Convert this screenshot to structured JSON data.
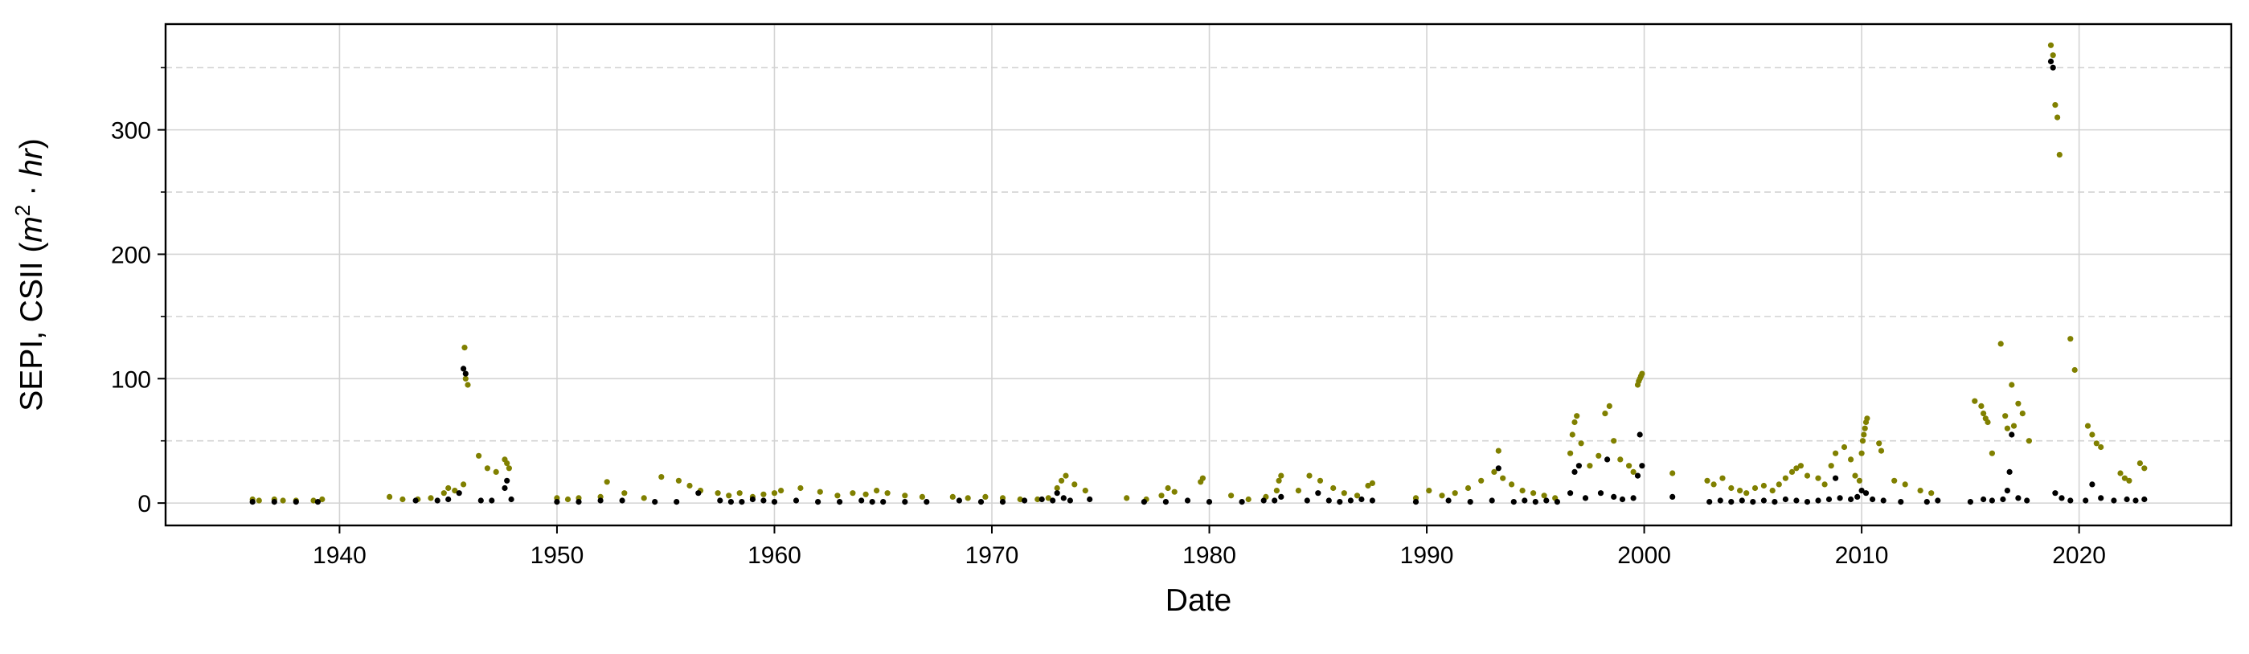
{
  "chart_data": {
    "type": "scatter",
    "title": "",
    "xlabel": "Date",
    "ylabel": "SEPI, CSII (m² · hr)",
    "ylabel_main": "SEPI, CSII (",
    "ylabel_math_m": "m",
    "ylabel_math_sup": "2",
    "ylabel_math_dot": " · ",
    "ylabel_math_hr": "hr",
    "ylabel_close": ")",
    "xlim": [
      1932,
      2027
    ],
    "ylim": [
      -18,
      385
    ],
    "x_ticks": [
      1940,
      1950,
      1960,
      1970,
      1980,
      1990,
      2000,
      2010,
      2020
    ],
    "x_tick_labels": [
      "1940",
      "1950",
      "1960",
      "1970",
      "1980",
      "1990",
      "2000",
      "2010",
      "2020"
    ],
    "y_ticks": [
      0,
      100,
      200,
      300
    ],
    "y_tick_labels": [
      "0",
      "100",
      "200",
      "300"
    ],
    "y_minor_ticks": [
      50,
      150,
      250,
      350
    ],
    "grid": "major solid, minor dashed (y)",
    "legend": "none",
    "series": [
      {
        "color": "#808000",
        "x": [
          1936.0,
          1936.3,
          1937.0,
          1937.4,
          1938.0,
          1938.8,
          1939.2,
          1942.3,
          1942.9,
          1943.6,
          1944.2,
          1944.8,
          1945.0,
          1945.3,
          1945.7,
          1945.75,
          1945.8,
          1945.9,
          1946.4,
          1946.8,
          1947.2,
          1947.6,
          1947.7,
          1947.8,
          1950.0,
          1950.5,
          1951.0,
          1952.0,
          1952.3,
          1953.1,
          1954.0,
          1954.8,
          1955.6,
          1956.1,
          1956.6,
          1957.4,
          1957.9,
          1958.4,
          1959.0,
          1959.5,
          1960.0,
          1960.3,
          1961.2,
          1962.1,
          1962.9,
          1963.6,
          1964.2,
          1964.7,
          1965.2,
          1966.0,
          1966.8,
          1968.2,
          1968.9,
          1969.7,
          1970.5,
          1971.3,
          1972.1,
          1972.6,
          1973.0,
          1973.2,
          1973.4,
          1973.8,
          1974.3,
          1976.2,
          1977.1,
          1977.8,
          1978.1,
          1978.4,
          1979.6,
          1979.7,
          1981.0,
          1981.8,
          1982.6,
          1983.1,
          1983.2,
          1983.3,
          1984.1,
          1984.6,
          1985.1,
          1985.7,
          1986.2,
          1986.8,
          1987.3,
          1987.5,
          1989.5,
          1990.1,
          1990.7,
          1991.3,
          1991.9,
          1992.5,
          1993.1,
          1993.3,
          1993.5,
          1993.9,
          1994.4,
          1994.9,
          1995.4,
          1995.9,
          1996.6,
          1996.7,
          1996.8,
          1996.9,
          1997.1,
          1997.5,
          1997.9,
          1998.2,
          1998.4,
          1998.6,
          1998.9,
          1999.3,
          1999.5,
          1999.7,
          1999.75,
          1999.8,
          1999.85,
          1999.9,
          2001.3,
          2002.9,
          2003.2,
          2003.6,
          2004.0,
          2004.4,
          2004.7,
          2005.1,
          2005.5,
          2005.9,
          2006.2,
          2006.5,
          2006.8,
          2007.0,
          2007.2,
          2007.5,
          2008.0,
          2008.3,
          2008.6,
          2008.8,
          2009.2,
          2009.5,
          2009.7,
          2009.9,
          2010.0,
          2010.05,
          2010.1,
          2010.15,
          2010.2,
          2010.25,
          2010.8,
          2010.9,
          2011.5,
          2012.0,
          2012.7,
          2013.2,
          2015.2,
          2015.5,
          2015.6,
          2015.7,
          2015.8,
          2016.0,
          2016.4,
          2016.6,
          2016.7,
          2016.9,
          2017.0,
          2017.2,
          2017.4,
          2017.7,
          2018.7,
          2018.8,
          2018.9,
          2019.0,
          2019.1,
          2019.6,
          2019.8,
          2020.4,
          2020.6,
          2020.8,
          2021.0,
          2021.9,
          2022.1,
          2022.3,
          2022.8,
          2023.0
        ],
        "y": [
          3,
          2,
          3,
          2,
          2,
          2,
          3,
          5,
          3,
          3,
          4,
          8,
          12,
          10,
          15,
          125,
          100,
          95,
          38,
          28,
          25,
          35,
          32,
          28,
          4,
          3,
          4,
          5,
          17,
          8,
          4,
          21,
          18,
          14,
          10,
          8,
          6,
          8,
          5,
          7,
          8,
          10,
          12,
          9,
          6,
          8,
          7,
          10,
          8,
          6,
          5,
          5,
          4,
          5,
          4,
          3,
          3,
          4,
          12,
          18,
          22,
          15,
          10,
          4,
          3,
          6,
          12,
          9,
          17,
          20,
          6,
          3,
          5,
          10,
          18,
          22,
          10,
          22,
          18,
          12,
          8,
          6,
          14,
          16,
          4,
          10,
          6,
          8,
          12,
          18,
          25,
          42,
          20,
          15,
          10,
          8,
          6,
          4,
          40,
          55,
          65,
          70,
          48,
          30,
          38,
          72,
          78,
          50,
          35,
          30,
          25,
          95,
          98,
          100,
          102,
          104,
          24,
          18,
          15,
          20,
          12,
          10,
          8,
          12,
          14,
          10,
          15,
          20,
          25,
          28,
          30,
          22,
          20,
          15,
          30,
          40,
          45,
          35,
          22,
          18,
          40,
          50,
          55,
          60,
          65,
          68,
          48,
          42,
          18,
          15,
          10,
          8,
          82,
          78,
          72,
          68,
          65,
          40,
          128,
          70,
          60,
          95,
          62,
          80,
          72,
          50,
          368,
          360,
          320,
          310,
          280,
          132,
          107,
          62,
          55,
          48,
          45,
          24,
          20,
          18,
          32,
          28
        ]
      },
      {
        "color": "#000000",
        "x": [
          1936.0,
          1937.0,
          1938.0,
          1939.0,
          1943.5,
          1944.5,
          1945.0,
          1945.5,
          1945.7,
          1945.8,
          1946.5,
          1947.0,
          1947.6,
          1947.7,
          1947.9,
          1950.0,
          1951.0,
          1952.0,
          1953.0,
          1954.5,
          1955.5,
          1956.5,
          1957.5,
          1958.0,
          1958.5,
          1959.0,
          1959.5,
          1960.0,
          1961.0,
          1962.0,
          1963.0,
          1964.0,
          1964.5,
          1965.0,
          1966.0,
          1967.0,
          1968.5,
          1969.5,
          1970.5,
          1971.5,
          1972.3,
          1972.8,
          1973.0,
          1973.3,
          1973.6,
          1974.5,
          1977.0,
          1978.0,
          1979.0,
          1980.0,
          1981.5,
          1982.5,
          1983.0,
          1983.3,
          1984.5,
          1985.0,
          1985.5,
          1986.0,
          1986.5,
          1987.0,
          1987.5,
          1989.5,
          1991.0,
          1992.0,
          1993.0,
          1993.3,
          1994.0,
          1994.5,
          1995.0,
          1995.5,
          1996.0,
          1996.6,
          1996.8,
          1997.0,
          1997.3,
          1998.0,
          1998.3,
          1998.6,
          1999.0,
          1999.5,
          1999.7,
          1999.8,
          1999.9,
          2001.3,
          2003.0,
          2003.5,
          2004.0,
          2004.5,
          2005.0,
          2005.5,
          2006.0,
          2006.5,
          2007.0,
          2007.5,
          2008.0,
          2008.5,
          2008.8,
          2009.0,
          2009.5,
          2009.8,
          2010.0,
          2010.2,
          2010.5,
          2011.0,
          2011.8,
          2013.0,
          2013.5,
          2015.0,
          2015.6,
          2016.0,
          2016.5,
          2016.7,
          2016.8,
          2016.9,
          2017.2,
          2017.6,
          2018.7,
          2018.8,
          2018.9,
          2019.2,
          2019.6,
          2020.3,
          2020.6,
          2021.0,
          2021.6,
          2022.2,
          2022.6,
          2023.0
        ],
        "y": [
          1,
          1,
          1,
          1,
          2,
          2,
          3,
          8,
          108,
          104,
          2,
          2,
          12,
          18,
          3,
          1,
          1,
          2,
          2,
          1,
          1,
          8,
          2,
          1,
          1,
          3,
          2,
          1,
          2,
          1,
          1,
          2,
          1,
          1,
          1,
          1,
          2,
          1,
          1,
          2,
          3,
          2,
          8,
          4,
          2,
          3,
          1,
          1,
          2,
          1,
          1,
          2,
          2,
          5,
          2,
          8,
          2,
          1,
          2,
          3,
          2,
          1,
          2,
          1,
          2,
          28,
          1,
          2,
          1,
          2,
          1,
          8,
          25,
          30,
          4,
          8,
          35,
          5,
          3,
          4,
          22,
          55,
          30,
          5,
          1,
          2,
          1,
          2,
          1,
          2,
          1,
          3,
          2,
          1,
          2,
          3,
          20,
          4,
          3,
          5,
          10,
          8,
          3,
          2,
          1,
          1,
          2,
          1,
          3,
          2,
          3,
          10,
          25,
          55,
          4,
          2,
          355,
          350,
          8,
          4,
          2,
          2,
          15,
          4,
          2,
          3,
          2,
          3
        ]
      }
    ]
  }
}
